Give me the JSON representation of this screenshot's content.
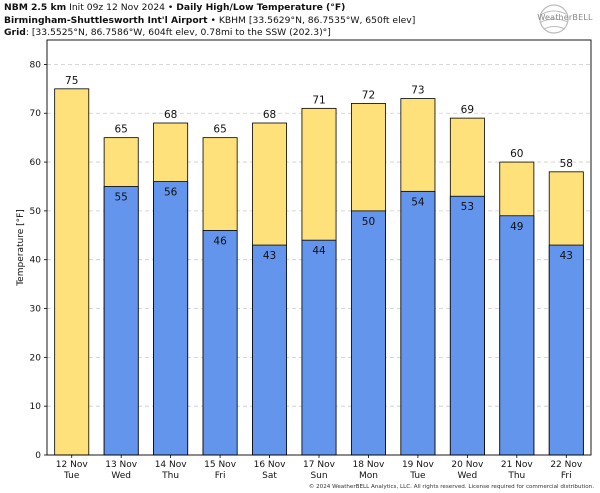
{
  "header": {
    "line1_bold": "NBM 2.5 km",
    "line1_mid": " Init 09z 12 Nov 2024 • ",
    "line1_bold2": "Daily High/Low Temperature (°F)",
    "line2_bold": "Birmingham-Shuttlesworth Int'l Airport",
    "line2_rest": " • KBHM [33.5629°N, 86.7535°W, 650ft elev]",
    "line3_bold": "Grid",
    "line3_rest": ": [33.5525°N, 86.7586°W, 604ft elev, 0.78mi to the SSW (202.3)°]"
  },
  "logo": {
    "text": "WeatherBELL"
  },
  "footer": "© 2024 WeatherBELL Analytics, LLC. All rights reserved. License required for commercial distribution.",
  "colors": {
    "high": "#fee17a",
    "low": "#6495ed",
    "grid": "#cccccc",
    "outline": "#000000"
  },
  "chart_data": {
    "type": "bar",
    "title": "Daily High/Low Temperature (°F)",
    "ylabel": "Temperature [°F]",
    "xlabel": "",
    "ylim": [
      0,
      85
    ],
    "yticks": [
      0,
      10,
      20,
      30,
      40,
      50,
      60,
      70,
      80
    ],
    "grid": true,
    "categories": [
      {
        "date": "12 Nov",
        "day": "Tue"
      },
      {
        "date": "13 Nov",
        "day": "Wed"
      },
      {
        "date": "14 Nov",
        "day": "Thu"
      },
      {
        "date": "15 Nov",
        "day": "Fri"
      },
      {
        "date": "16 Nov",
        "day": "Sat"
      },
      {
        "date": "17 Nov",
        "day": "Sun"
      },
      {
        "date": "18 Nov",
        "day": "Mon"
      },
      {
        "date": "19 Nov",
        "day": "Tue"
      },
      {
        "date": "20 Nov",
        "day": "Wed"
      },
      {
        "date": "21 Nov",
        "day": "Thu"
      },
      {
        "date": "22 Nov",
        "day": "Fri"
      }
    ],
    "series": [
      {
        "name": "High",
        "values": [
          75,
          65,
          68,
          65,
          68,
          71,
          72,
          73,
          69,
          60,
          58
        ]
      },
      {
        "name": "Low",
        "values": [
          null,
          55,
          56,
          46,
          43,
          44,
          50,
          54,
          53,
          49,
          43
        ]
      }
    ]
  }
}
